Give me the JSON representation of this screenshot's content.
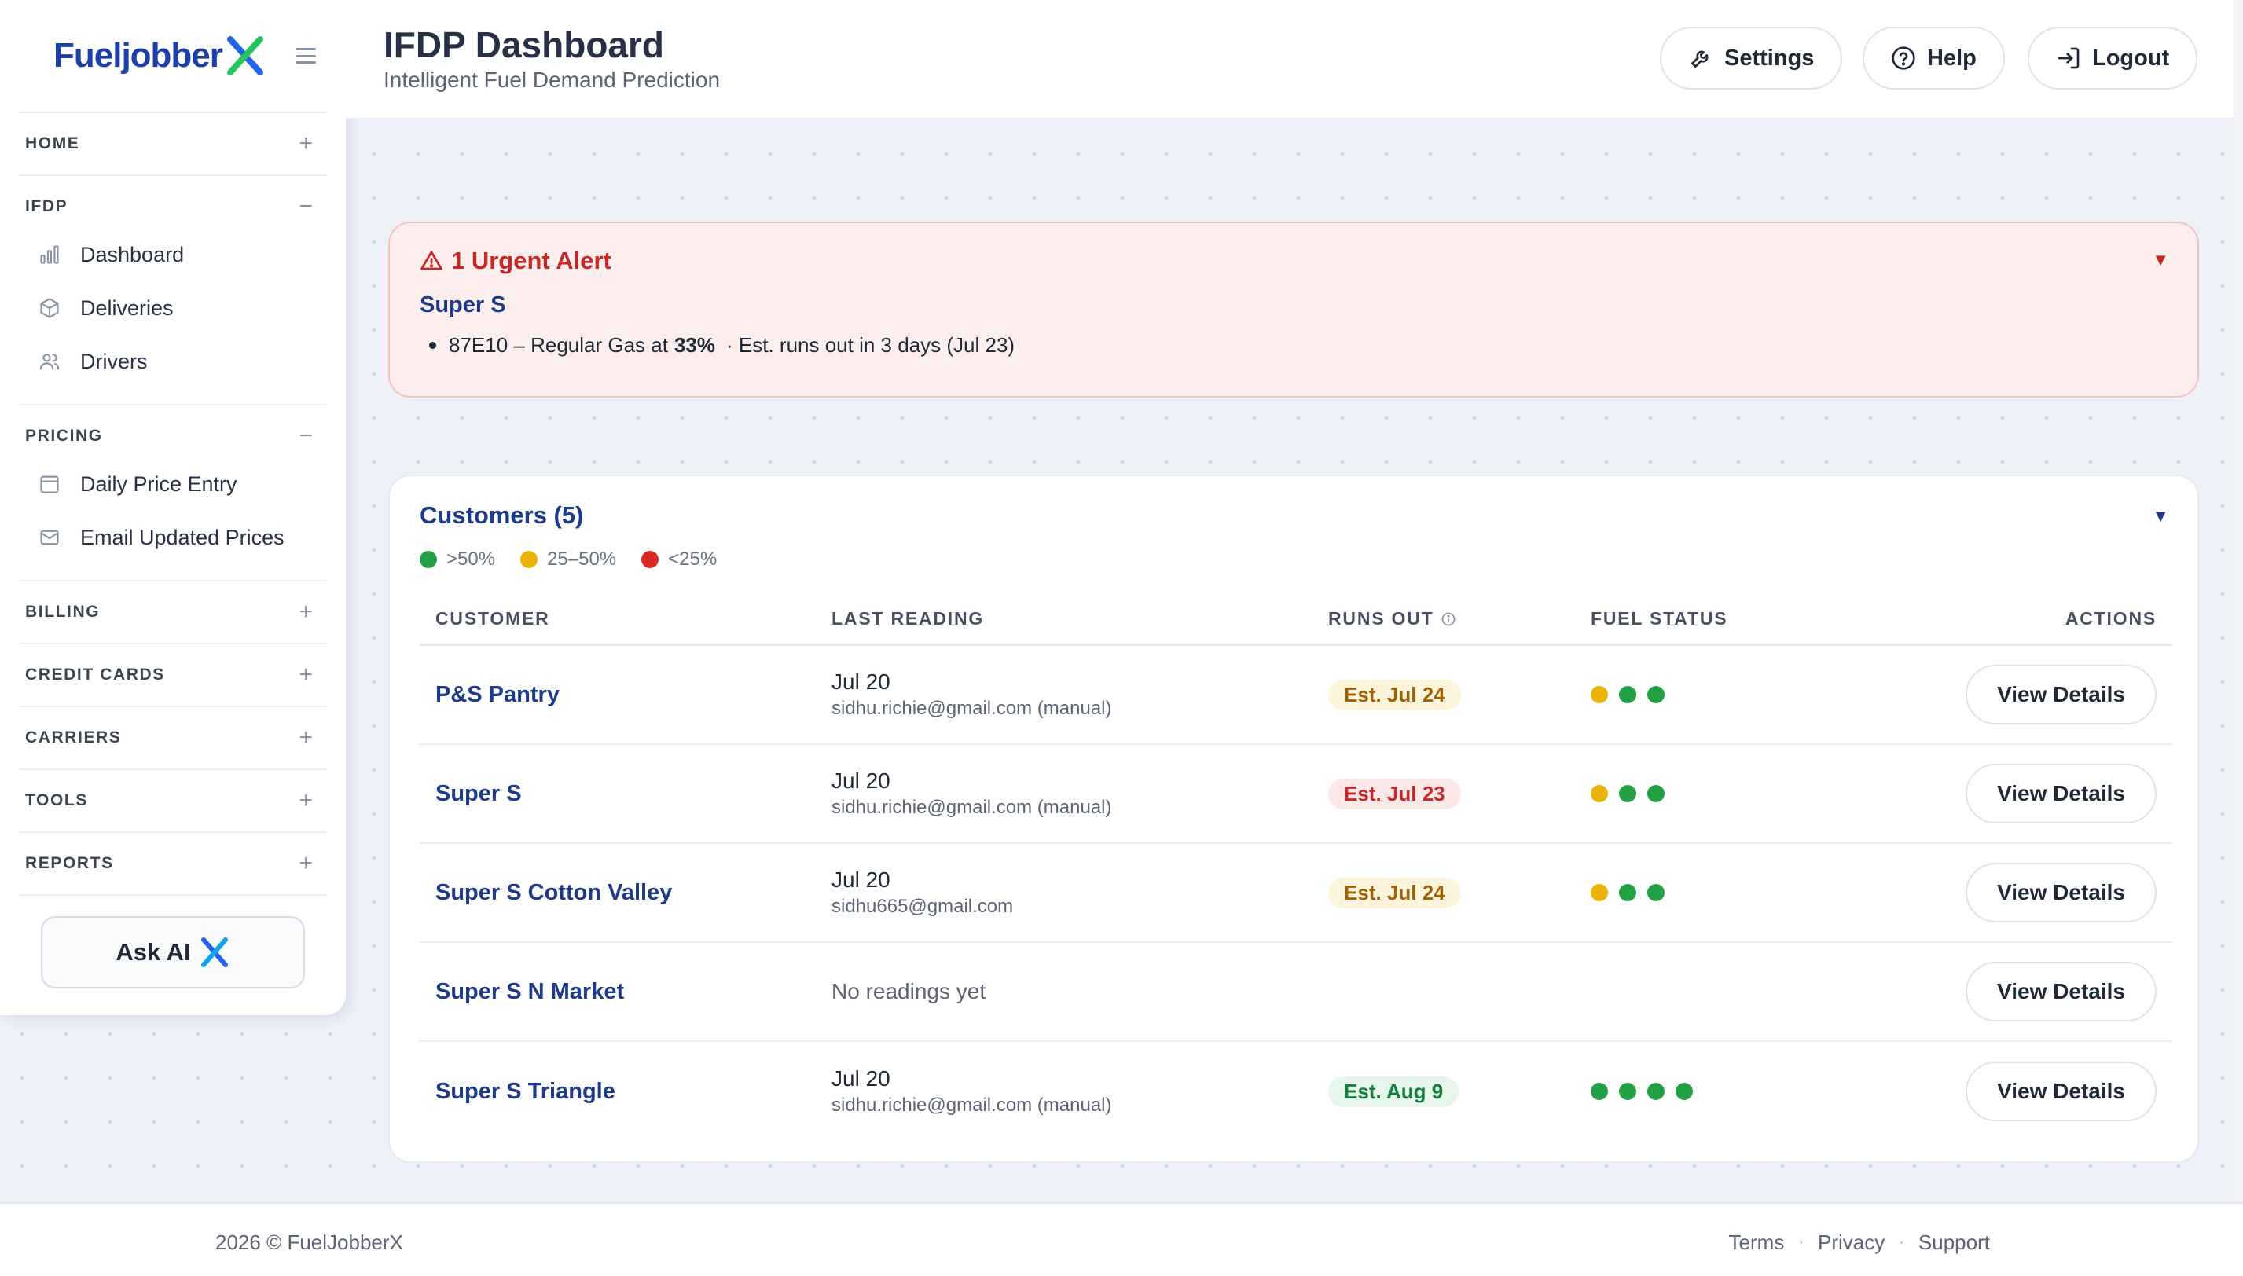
{
  "brand": {
    "name": "Fueljobber",
    "x_mark": "X",
    "colors": {
      "blue": "#1f3fa8",
      "green": "#22c55e",
      "x_blue": "#2563eb"
    }
  },
  "sidebar": {
    "sections": [
      {
        "label": "HOME",
        "toggle": "+",
        "open": false
      },
      {
        "label": "IFDP",
        "toggle": "−",
        "open": true,
        "items": [
          {
            "label": "Dashboard",
            "icon": "bar-chart-icon"
          },
          {
            "label": "Deliveries",
            "icon": "package-icon"
          },
          {
            "label": "Drivers",
            "icon": "users-icon"
          }
        ]
      },
      {
        "label": "PRICING",
        "toggle": "−",
        "open": true,
        "items": [
          {
            "label": "Daily Price Entry",
            "icon": "calendar-icon"
          },
          {
            "label": "Email Updated Prices",
            "icon": "mail-icon"
          }
        ]
      },
      {
        "label": "BILLING",
        "toggle": "+",
        "open": false
      },
      {
        "label": "CREDIT CARDS",
        "toggle": "+",
        "open": false
      },
      {
        "label": "CARRIERS",
        "toggle": "+",
        "open": false
      },
      {
        "label": "TOOLS",
        "toggle": "+",
        "open": false
      },
      {
        "label": "REPORTS",
        "toggle": "+",
        "open": false
      }
    ],
    "ask_ai": {
      "label": "Ask AI",
      "icon": "x-logo-icon"
    }
  },
  "header": {
    "title": "IFDP Dashboard",
    "subtitle": "Intelligent Fuel Demand Prediction",
    "buttons": [
      {
        "label": "Settings",
        "icon": "wrench-icon"
      },
      {
        "label": "Help",
        "icon": "help-circle-icon"
      },
      {
        "label": "Logout",
        "icon": "logout-icon"
      }
    ]
  },
  "alert": {
    "title": "1 Urgent Alert",
    "caret": "▼",
    "customer": "Super S",
    "line_prefix": "87E10 – Regular Gas at",
    "line_pct": "33%",
    "line_suffix": "·  Est. runs out in 3 days (Jul 23)"
  },
  "customers": {
    "title": "Customers (5)",
    "caret": "▼",
    "legend": [
      {
        "label": ">50%",
        "color": "#22a043"
      },
      {
        "label": "25–50%",
        "color": "#eab308"
      },
      {
        "label": "<25%",
        "color": "#dc2626"
      }
    ],
    "columns": {
      "customer": "CUSTOMER",
      "last_reading": "LAST READING",
      "runs_out": "RUNS OUT",
      "fuel_status": "FUEL STATUS",
      "actions": "ACTIONS"
    },
    "rows": [
      {
        "name": "P&S Pantry",
        "date": "Jul 20",
        "by": "sidhu.richie@gmail.com (manual)",
        "runs_out": "Est. Jul 24",
        "tone": "amber",
        "dots": [
          "amber",
          "green",
          "green"
        ],
        "action": "View Details"
      },
      {
        "name": "Super S",
        "date": "Jul 20",
        "by": "sidhu.richie@gmail.com (manual)",
        "runs_out": "Est. Jul 23",
        "tone": "red",
        "dots": [
          "amber",
          "green",
          "green"
        ],
        "action": "View Details"
      },
      {
        "name": "Super S Cotton Valley",
        "date": "Jul 20",
        "by": "sidhu665@gmail.com",
        "runs_out": "Est. Jul 24",
        "tone": "amber",
        "dots": [
          "amber",
          "green",
          "green"
        ],
        "action": "View Details"
      },
      {
        "name": "Super S N Market",
        "date": "",
        "by": "",
        "no_reading": "No readings yet",
        "runs_out": "",
        "tone": "",
        "dots": [],
        "action": "View Details"
      },
      {
        "name": "Super S Triangle",
        "date": "Jul 20",
        "by": "sidhu.richie@gmail.com (manual)",
        "runs_out": "Est. Aug 9",
        "tone": "green",
        "dots": [
          "green",
          "green",
          "green",
          "green"
        ],
        "action": "View Details"
      }
    ]
  },
  "status_colors": {
    "green": "#22a043",
    "amber": "#eab308",
    "red": "#dc2626"
  },
  "footer": {
    "copyright": "2026 © FuelJobberX",
    "links": [
      "Terms",
      "Privacy",
      "Support"
    ],
    "separator": "·"
  }
}
